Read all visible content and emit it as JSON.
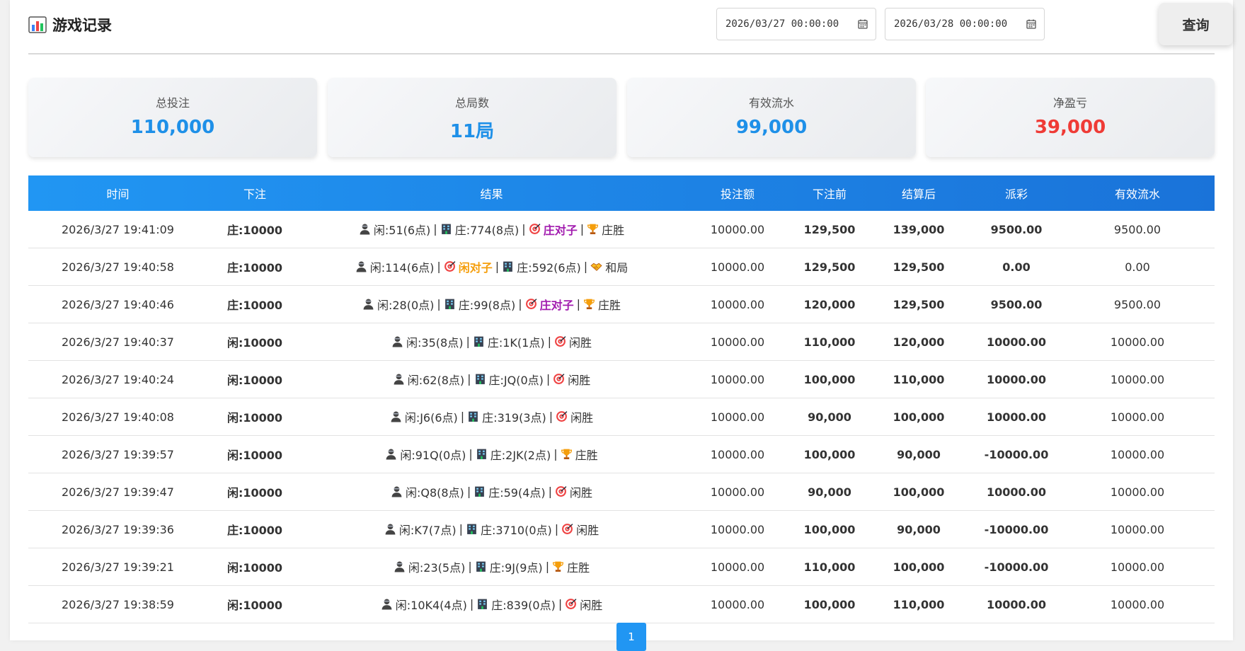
{
  "header": {
    "title": "游戏记录",
    "start_date": "2026/03/27 00:00:00",
    "end_date": "2026/03/28 00:00:00",
    "query_label": "查询"
  },
  "stats": [
    {
      "label": "总投注",
      "value": "110,000",
      "color": "#1e90e8"
    },
    {
      "label": "总局数",
      "value": "11局",
      "color": "#1e90e8"
    },
    {
      "label": "有效流水",
      "value": "99,000",
      "color": "#1e90e8"
    },
    {
      "label": "净盈亏",
      "value": "39,000",
      "color": "#ef3b36"
    }
  ],
  "table": {
    "headers": [
      "时间",
      "下注",
      "结果",
      "投注额",
      "下注前",
      "结算后",
      "派彩",
      "有效流水"
    ],
    "rows": [
      {
        "time": "2026/3/27 19:41:09",
        "bet": "庄:10000",
        "bet_side": "banker",
        "player": "闲:51(6点)",
        "banker": "庄:774(8点)",
        "pair": "庄对子",
        "pair_type": "banker",
        "outcome": "庄胜",
        "outcome_icon": "trophy-icon",
        "amount": "10000.00",
        "before": "129,500",
        "after": "139,000",
        "payout": "9500.00",
        "payout_color": "red",
        "valid": "9500.00"
      },
      {
        "time": "2026/3/27 19:40:58",
        "bet": "庄:10000",
        "bet_side": "banker",
        "player": "闲:114(6点)",
        "banker": "庄:592(6点)",
        "pair": "闲对子",
        "pair_type": "player",
        "pair_first": true,
        "outcome": "和局",
        "outcome_icon": "handshake-icon",
        "amount": "10000.00",
        "before": "129,500",
        "after": "129,500",
        "payout": "0.00",
        "payout_color": "black",
        "valid": "0.00"
      },
      {
        "time": "2026/3/27 19:40:46",
        "bet": "庄:10000",
        "bet_side": "banker",
        "player": "闲:28(0点)",
        "banker": "庄:99(8点)",
        "pair": "庄对子",
        "pair_type": "banker",
        "outcome": "庄胜",
        "outcome_icon": "trophy-icon",
        "amount": "10000.00",
        "before": "120,000",
        "after": "129,500",
        "payout": "9500.00",
        "payout_color": "red",
        "valid": "9500.00"
      },
      {
        "time": "2026/3/27 19:40:37",
        "bet": "闲:10000",
        "bet_side": "player",
        "player": "闲:35(8点)",
        "banker": "庄:1K(1点)",
        "outcome": "闲胜",
        "outcome_icon": "target-icon",
        "amount": "10000.00",
        "before": "110,000",
        "after": "120,000",
        "payout": "10000.00",
        "payout_color": "red",
        "valid": "10000.00"
      },
      {
        "time": "2026/3/27 19:40:24",
        "bet": "闲:10000",
        "bet_side": "player",
        "player": "闲:62(8点)",
        "banker": "庄:JQ(0点)",
        "outcome": "闲胜",
        "outcome_icon": "target-icon",
        "amount": "10000.00",
        "before": "100,000",
        "after": "110,000",
        "payout": "10000.00",
        "payout_color": "red",
        "valid": "10000.00"
      },
      {
        "time": "2026/3/27 19:40:08",
        "bet": "闲:10000",
        "bet_side": "player",
        "player": "闲:J6(6点)",
        "banker": "庄:319(3点)",
        "outcome": "闲胜",
        "outcome_icon": "target-icon",
        "amount": "10000.00",
        "before": "90,000",
        "after": "100,000",
        "payout": "10000.00",
        "payout_color": "red",
        "valid": "10000.00"
      },
      {
        "time": "2026/3/27 19:39:57",
        "bet": "闲:10000",
        "bet_side": "player",
        "player": "闲:91Q(0点)",
        "banker": "庄:2JK(2点)",
        "outcome": "庄胜",
        "outcome_icon": "trophy-icon",
        "amount": "10000.00",
        "before": "100,000",
        "after": "90,000",
        "payout": "-10000.00",
        "payout_color": "green",
        "valid": "10000.00"
      },
      {
        "time": "2026/3/27 19:39:47",
        "bet": "闲:10000",
        "bet_side": "player",
        "player": "闲:Q8(8点)",
        "banker": "庄:59(4点)",
        "outcome": "闲胜",
        "outcome_icon": "target-icon",
        "amount": "10000.00",
        "before": "90,000",
        "after": "100,000",
        "payout": "10000.00",
        "payout_color": "red",
        "valid": "10000.00"
      },
      {
        "time": "2026/3/27 19:39:36",
        "bet": "庄:10000",
        "bet_side": "banker",
        "player": "闲:K7(7点)",
        "banker": "庄:3710(0点)",
        "outcome": "闲胜",
        "outcome_icon": "target-icon",
        "amount": "10000.00",
        "before": "100,000",
        "after": "90,000",
        "payout": "-10000.00",
        "payout_color": "green",
        "valid": "10000.00"
      },
      {
        "time": "2026/3/27 19:39:21",
        "bet": "闲:10000",
        "bet_side": "player",
        "player": "闲:23(5点)",
        "banker": "庄:9J(9点)",
        "outcome": "庄胜",
        "outcome_icon": "trophy-icon",
        "amount": "10000.00",
        "before": "110,000",
        "after": "100,000",
        "payout": "-10000.00",
        "payout_color": "green",
        "valid": "10000.00"
      },
      {
        "time": "2026/3/27 19:38:59",
        "bet": "闲:10000",
        "bet_side": "player",
        "player": "闲:10K4(4点)",
        "banker": "庄:839(0点)",
        "outcome": "闲胜",
        "outcome_icon": "target-icon",
        "amount": "10000.00",
        "before": "100,000",
        "after": "110,000",
        "payout": "10000.00",
        "payout_color": "red",
        "valid": "10000.00"
      }
    ]
  },
  "pagination": {
    "current": "1"
  }
}
